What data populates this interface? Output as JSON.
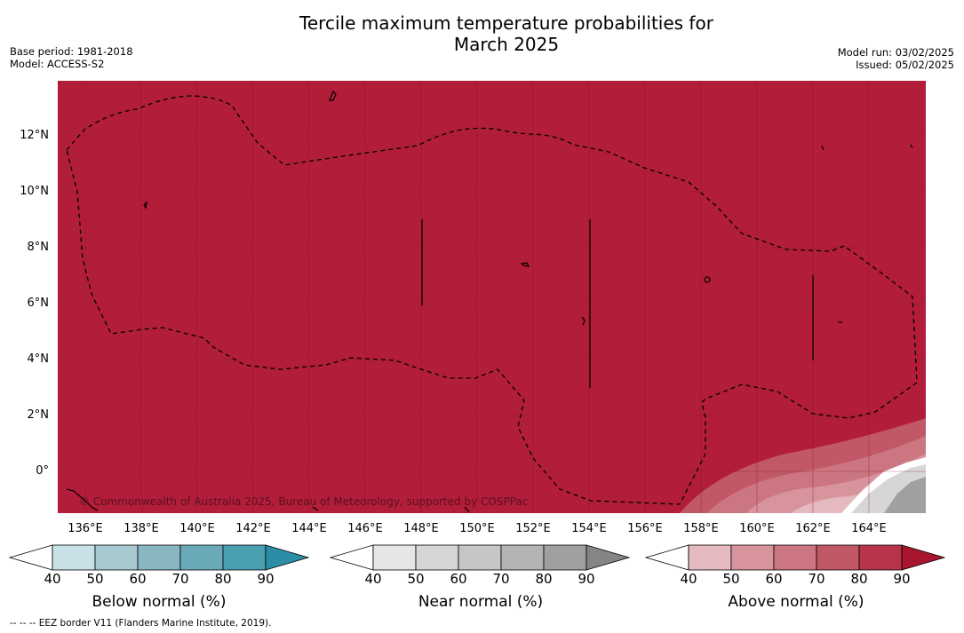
{
  "header": {
    "title": "Tercile maximum temperature probabilities for\nMarch 2025",
    "base_period": "Base period: 1981-2018",
    "model": "Model: ACCESS-S2",
    "model_run": "Model run: 03/02/2025",
    "issued": "Issued: 05/02/2025"
  },
  "map": {
    "background_color": "#b21d3a",
    "copyright": "© Commonwealth of Australia 2025, Bureau of Meteorology, supported by COSPPac",
    "lat_labels": [
      "12°N",
      "10°N",
      "8°N",
      "6°N",
      "4°N",
      "2°N",
      "0°"
    ],
    "lon_labels": [
      "136°E",
      "138°E",
      "140°E",
      "142°E",
      "144°E",
      "146°E",
      "148°E",
      "150°E",
      "152°E",
      "154°E",
      "156°E",
      "158°E",
      "160°E",
      "162°E",
      "164°E"
    ]
  },
  "colorbars": [
    {
      "title": "Below normal (%)",
      "ticks": [
        "40",
        "50",
        "60",
        "70",
        "80",
        "90"
      ],
      "colors": [
        "#ffffff",
        "#c8e1e7",
        "#a7c9d0",
        "#88b6c1",
        "#6aaab8",
        "#479fb0",
        "#2b8ea6"
      ]
    },
    {
      "title": "Near normal (%)",
      "ticks": [
        "40",
        "50",
        "60",
        "70",
        "80",
        "90"
      ],
      "colors": [
        "#ffffff",
        "#e6e6e6",
        "#d6d6d6",
        "#c6c6c6",
        "#b4b4b4",
        "#a0a0a0",
        "#858585"
      ]
    },
    {
      "title": "Above normal (%)",
      "ticks": [
        "40",
        "50",
        "60",
        "70",
        "80",
        "90"
      ],
      "colors": [
        "#ffffff",
        "#e4b9bf",
        "#d8949c",
        "#cb7680",
        "#c15867",
        "#b8344b",
        "#a9152f"
      ]
    }
  ],
  "footnote": "--  --  -- EEZ border V11 (Flanders Marine Institute, 2019)."
}
